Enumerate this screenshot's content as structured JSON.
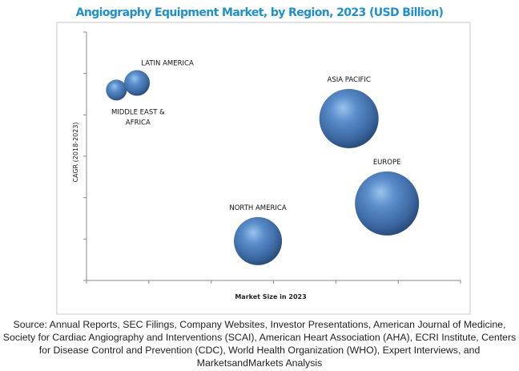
{
  "chart_data": {
    "type": "scatter",
    "subtype": "bubble",
    "title": "Angiography Equipment Market, by Region, 2023 (USD Billion)",
    "xlabel": "Market Size in 2023",
    "ylabel": "CAGR (2018-2023)",
    "xlim": [
      0,
      6
    ],
    "ylim": [
      0,
      6
    ],
    "tick_labels_shown": false,
    "grid": false,
    "points": [
      {
        "label": "MIDDLE EAST & AFRICA",
        "label_lines": [
          "MIDDLE EAST &",
          "AFRICA"
        ],
        "x": 0.48,
        "y": 4.6,
        "size": 13,
        "label_pos": "below"
      },
      {
        "label": "LATIN AMERICA",
        "label_lines": [
          "LATIN AMERICA"
        ],
        "x": 0.81,
        "y": 4.77,
        "size": 16,
        "label_pos": "above-right"
      },
      {
        "label": "ASIA PACIFIC",
        "label_lines": [
          "ASIA PACIFIC"
        ],
        "x": 4.21,
        "y": 3.91,
        "size": 37,
        "label_pos": "above"
      },
      {
        "label": "EUROPE",
        "label_lines": [
          "EUROPE"
        ],
        "x": 4.82,
        "y": 1.86,
        "size": 40,
        "label_pos": "above"
      },
      {
        "label": "NORTH AMERICA",
        "label_lines": [
          "NORTH AMERICA"
        ],
        "x": 2.75,
        "y": 0.95,
        "size": 30,
        "label_pos": "above"
      }
    ],
    "colors": {
      "bubble": "#4a7ab5",
      "title": "#1f8fd0"
    }
  },
  "source": "Source: Annual Reports, SEC Filings, Company Websites, Investor Presentations, American Journal of Medicine, Society for Cardiac Angiography and Interventions (SCAI), American Heart Association (AHA), ECRI Institute, Centers for Disease Control and Prevention (CDC), World Health Organization (WHO), Expert Interviews, and MarketsandMarkets Analysis"
}
